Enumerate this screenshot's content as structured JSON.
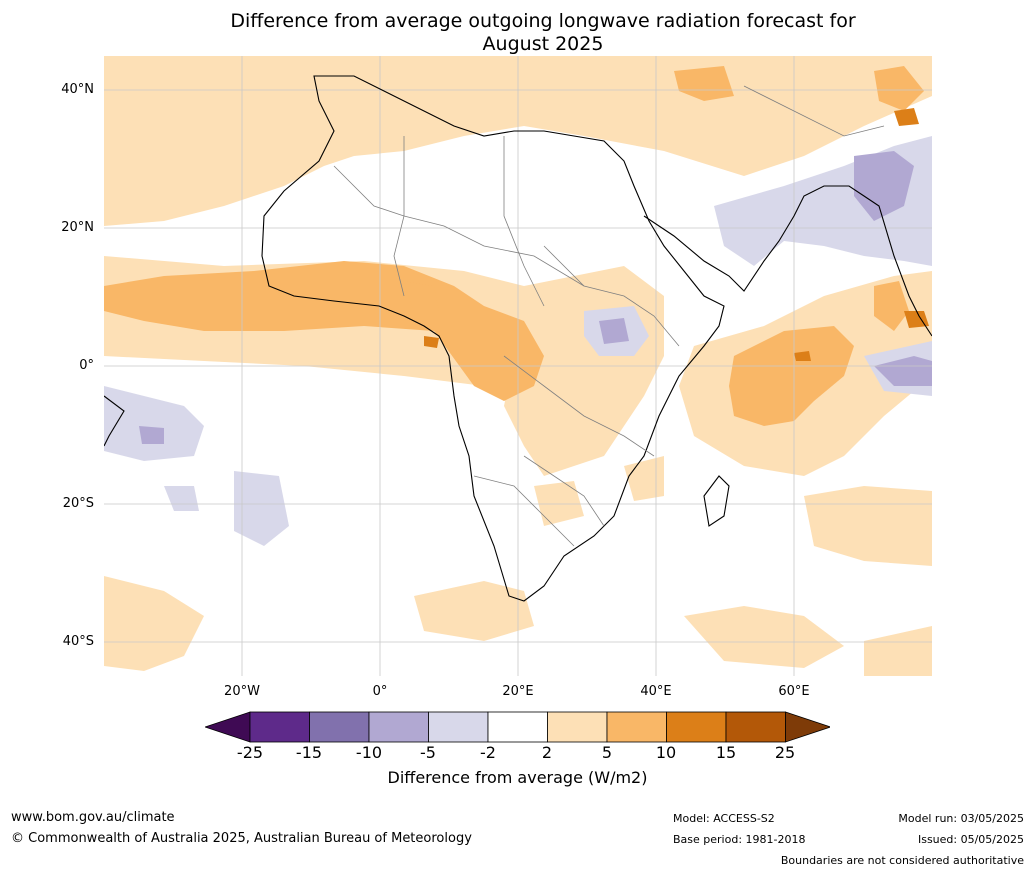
{
  "title": {
    "line1": "Difference from average outgoing longwave radiation forecast for",
    "line2": "August 2025"
  },
  "map": {
    "lat_labels": [
      "40°N",
      "20°N",
      "0°",
      "20°S",
      "40°S"
    ],
    "lon_labels": [
      "20°W",
      "0°",
      "20°E",
      "40°E",
      "60°E"
    ]
  },
  "colorbar": {
    "ticks": [
      "-25",
      "-15",
      "-10",
      "-5",
      "-2",
      "2",
      "5",
      "10",
      "15",
      "25"
    ],
    "colors": [
      "#3f0a54",
      "#5e2a8a",
      "#8171ad",
      "#b1a8d2",
      "#d8d8ea",
      "#ffffff",
      "#fde0b6",
      "#f9b767",
      "#dc7f18",
      "#b35808",
      "#7e3b08"
    ],
    "label": "Difference from average (W/m2)"
  },
  "footer": {
    "website": "www.bom.gov.au/climate",
    "copyright": "© Commonwealth of Australia 2025, Australian Bureau of Meteorology",
    "model": "Model: ACCESS-S2",
    "base_period": "Base period: 1981-2018",
    "model_run": "Model run: 03/05/2025",
    "issued": "Issued: 05/05/2025",
    "disclaimer": "Boundaries are not considered authoritative"
  }
}
